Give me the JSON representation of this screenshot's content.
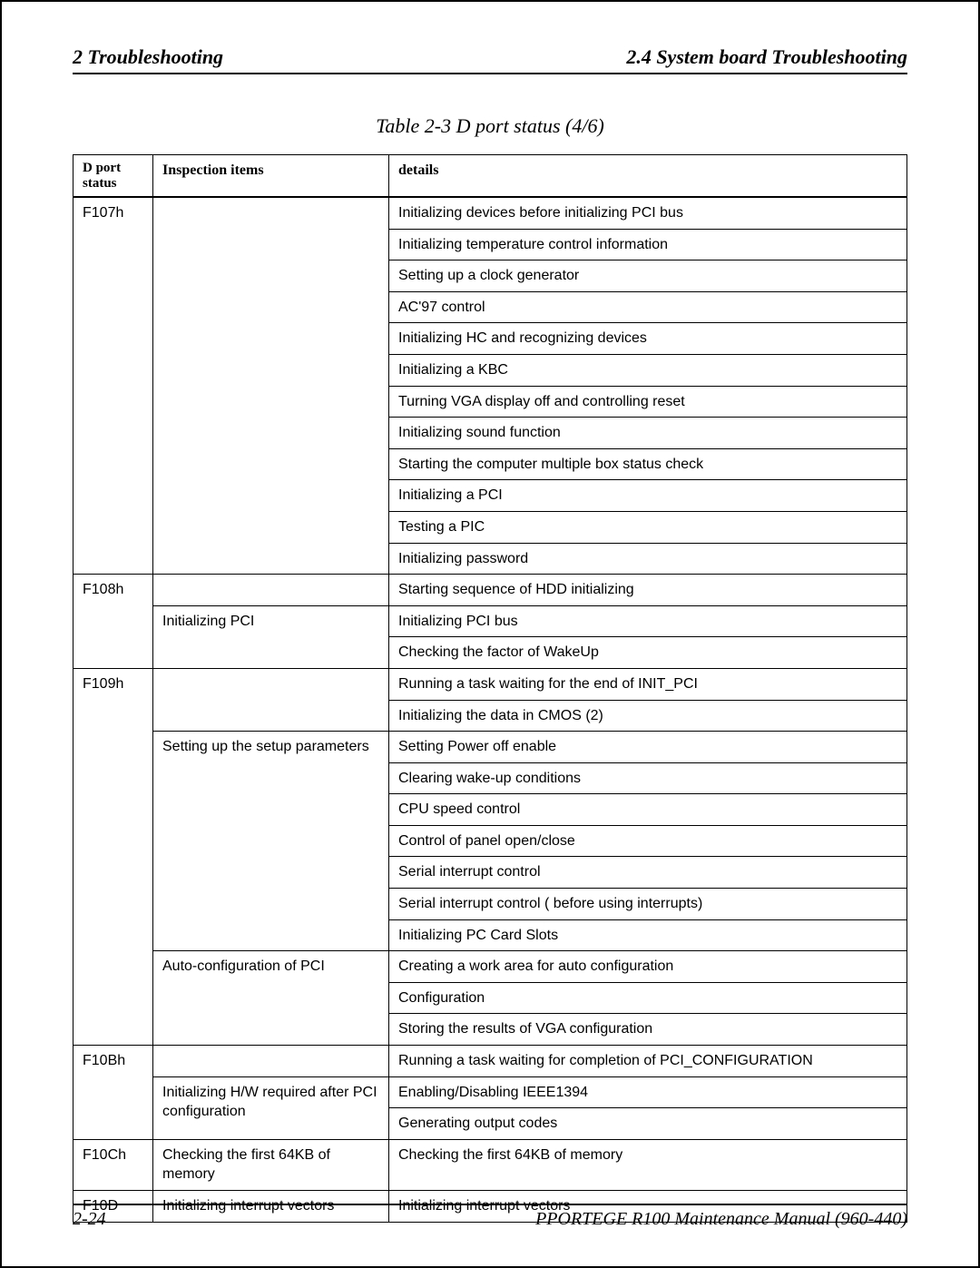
{
  "header": {
    "left": "2  Troubleshooting",
    "right_bold": "2.4  System",
    "right_rest": " board Troubleshooting"
  },
  "caption": "Table 2-3 D port status (4/6)",
  "columns": {
    "c0a": "D port",
    "c0b": "status",
    "c1": "Inspection items",
    "c2": "details"
  },
  "groups": [
    {
      "port": "F107h",
      "blocks": [
        {
          "insp": "",
          "details": [
            "Initializing devices before initializing PCI bus",
            "Initializing temperature control information",
            "Setting up a clock generator",
            "AC'97 control",
            "Initializing HC and recognizing devices",
            "Initializing a KBC",
            "Turning VGA display off and controlling reset",
            "Initializing sound function",
            "Starting the computer multiple box status check",
            "Initializing a PCI",
            "Testing a PIC",
            "Initializing password"
          ]
        }
      ]
    },
    {
      "port": "F108h",
      "blocks": [
        {
          "insp": "",
          "details": [
            "Starting sequence of HDD initializing"
          ]
        },
        {
          "insp": "Initializing PCI",
          "details": [
            "Initializing PCI bus",
            "Checking the factor of WakeUp"
          ]
        }
      ]
    },
    {
      "port": "F109h",
      "blocks": [
        {
          "insp": "",
          "details": [
            "Running a task waiting for the end of INIT_PCI",
            "Initializing the data in CMOS (2)"
          ]
        },
        {
          "insp": "Setting up the setup parameters",
          "details": [
            "Setting Power off enable",
            "Clearing wake-up conditions",
            "CPU speed control",
            "Control of panel open/close",
            "Serial interrupt control",
            "Serial interrupt control ( before using interrupts)",
            "Initializing PC Card Slots"
          ]
        },
        {
          "insp": "Auto-configuration of PCI",
          "details": [
            "Creating a work area for auto configuration",
            "Configuration",
            "Storing the results of VGA configuration"
          ]
        }
      ]
    },
    {
      "port": "F10Bh",
      "blocks": [
        {
          "insp": "",
          "details": [
            "Running  a task  waiting for completion of PCI_CONFIGURATION"
          ]
        },
        {
          "insp": "Initializing H/W  required after PCI configuration",
          "details": [
            "Enabling/Disabling IEEE1394",
            "Generating output codes"
          ]
        }
      ]
    },
    {
      "port": "F10Ch",
      "blocks": [
        {
          "insp": "Checking the first 64KB of memory",
          "details": [
            "Checking the first 64KB of memory"
          ]
        }
      ]
    },
    {
      "port": "F10D",
      "blocks": [
        {
          "insp": "Initializing interrupt vectors",
          "details": [
            "Initializing interrupt vectors"
          ]
        }
      ]
    }
  ],
  "footer": {
    "left": "2-24",
    "right": "PPORTEGE R100 Maintenance Manual (960-440)"
  }
}
